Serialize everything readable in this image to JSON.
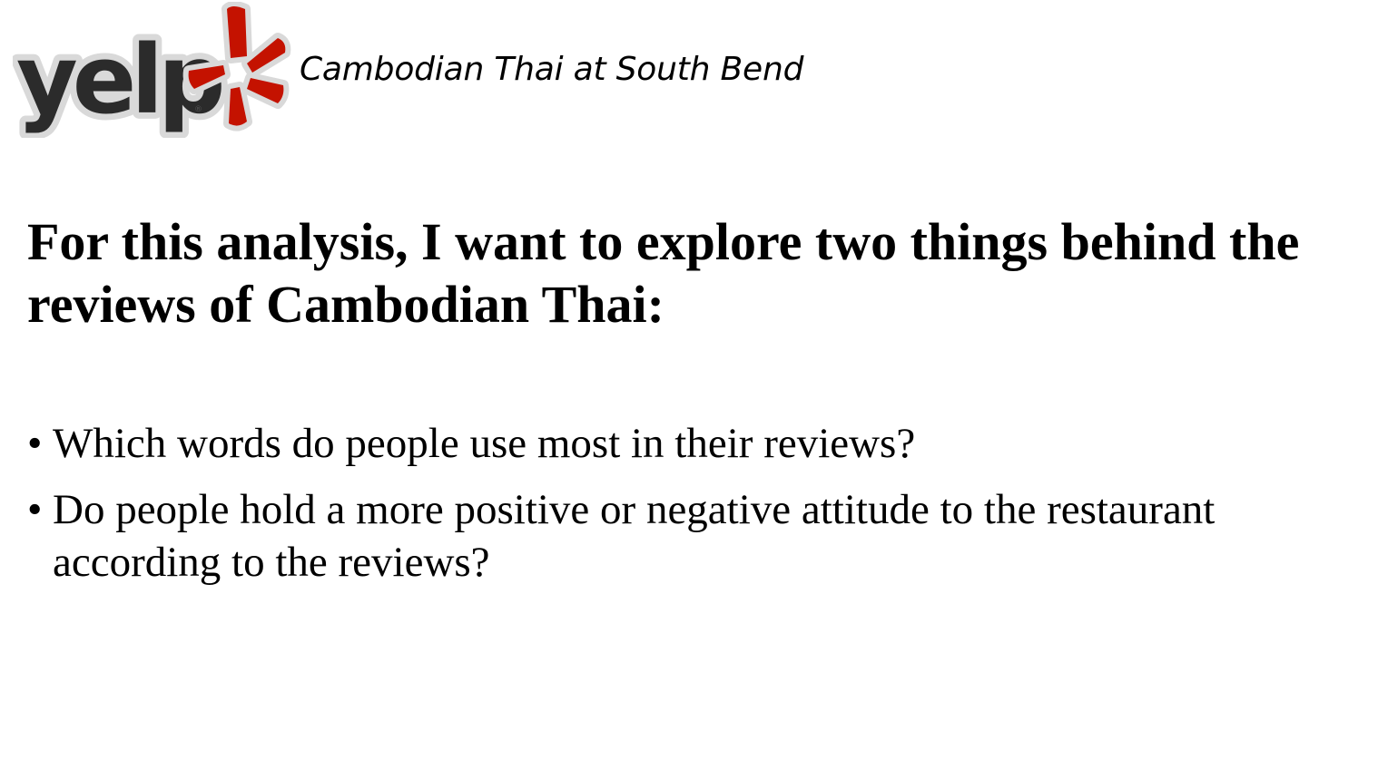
{
  "header": {
    "logo_name": "yelp",
    "logo_icon": "yelp-burst-icon",
    "title": "Cambodian Thai at South Bend"
  },
  "heading": "For this analysis, I want to explore two things behind the reviews of Cambodian Thai:",
  "bullets": [
    {
      "marker": "•",
      "text": "Which words do people use most in their reviews?"
    },
    {
      "marker": "•",
      "text": "Do people hold a more positive or negative attitude to the restaurant according to the reviews?"
    }
  ],
  "colors": {
    "logo_text": "#2b2b2b",
    "logo_burst": "#c41200",
    "text": "#000000",
    "background": "#ffffff"
  }
}
